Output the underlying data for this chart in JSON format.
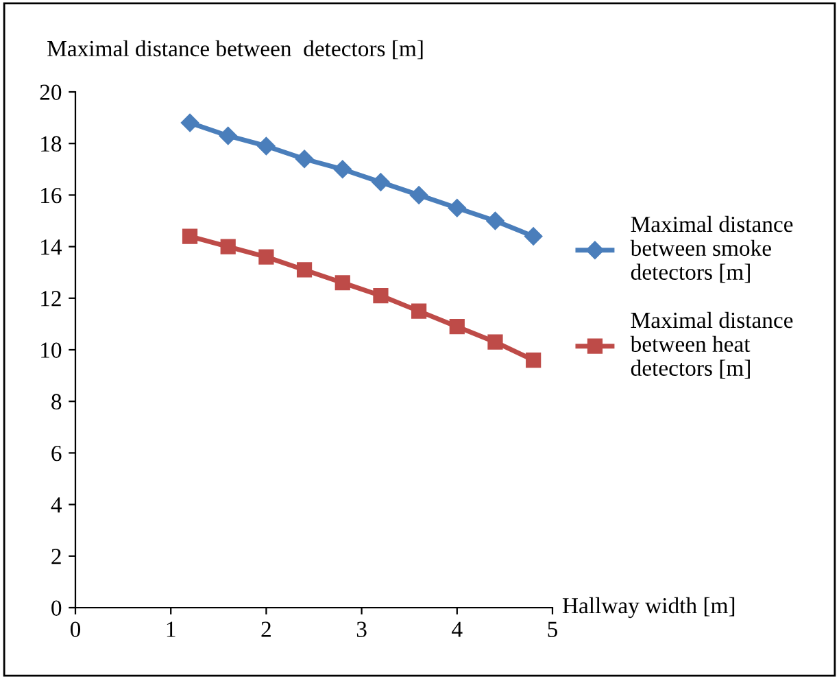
{
  "chart_data": {
    "type": "line",
    "xlabel": "Hallway width [m]",
    "ylabel": "Maximal distance between  detectors [m]",
    "x": [
      1.2,
      1.6,
      2.0,
      2.4,
      2.8,
      3.2,
      3.6,
      4.0,
      4.4,
      4.8
    ],
    "series": [
      {
        "name": "Maximal distance between smoke detectors [m]",
        "color": "#4a7ebb",
        "marker": "diamond",
        "values": [
          18.8,
          18.3,
          17.9,
          17.4,
          17.0,
          16.5,
          16.0,
          15.5,
          15.0,
          14.4
        ]
      },
      {
        "name": "Maximal distance between heat detectors [m]",
        "color": "#be4b48",
        "marker": "square",
        "values": [
          14.4,
          14.0,
          13.6,
          13.1,
          12.6,
          12.1,
          11.5,
          10.9,
          10.3,
          9.6
        ]
      }
    ],
    "xlim": [
      0,
      5
    ],
    "xticks": [
      0,
      1,
      2,
      3,
      4,
      5
    ],
    "ylim": [
      0,
      20
    ],
    "yticks": [
      0,
      2,
      4,
      6,
      8,
      10,
      12,
      14,
      16,
      18,
      20
    ],
    "grid": false,
    "legend": "right"
  }
}
